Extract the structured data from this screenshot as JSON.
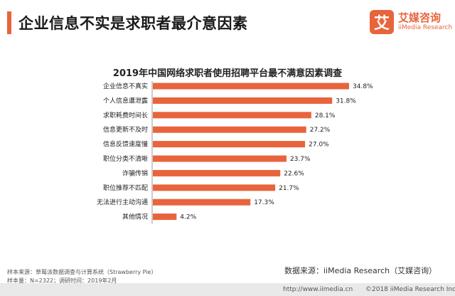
{
  "header": {
    "title": "企业信息不实是求职者最介意因素"
  },
  "logo": {
    "badge_char": "艾",
    "name_cn": "艾媒咨询",
    "name_en": "iiMedia Research"
  },
  "chart_data": {
    "type": "bar",
    "orientation": "horizontal",
    "title": "2019年中国网络求职者使用招聘平台最不满意因素调查",
    "categories": [
      "企业信息不真实",
      "个人信息遭泄露",
      "求职耗费时间长",
      "信息更新不及时",
      "信息反馈速度慢",
      "职位分类不清晰",
      "诈骗传销",
      "职位推荐不匹配",
      "无法进行主动沟通",
      "其他情况"
    ],
    "values": [
      34.8,
      31.8,
      28.1,
      27.2,
      27.0,
      23.7,
      22.6,
      21.7,
      17.3,
      4.2
    ],
    "value_labels": [
      "34.8%",
      "31.8%",
      "28.1%",
      "27.2%",
      "27.0%",
      "23.7%",
      "22.6%",
      "21.7%",
      "17.3%",
      "4.2%"
    ],
    "xlim": [
      0,
      34.8
    ],
    "grid": false,
    "legend": "none",
    "bar_color": "#e8643c"
  },
  "footer": {
    "sample_source": "样本来源：草莓派数据调查与计算系统（Strawberry Pie）",
    "sample_info": "样本量：N=2322；调研时间：2019年2月",
    "data_source": "数据来源：iiMedia Research（艾媒咨询）",
    "watermark": "http://www.iimedia.cn",
    "copyright": "©2018  iiMedia Research  Inc"
  }
}
